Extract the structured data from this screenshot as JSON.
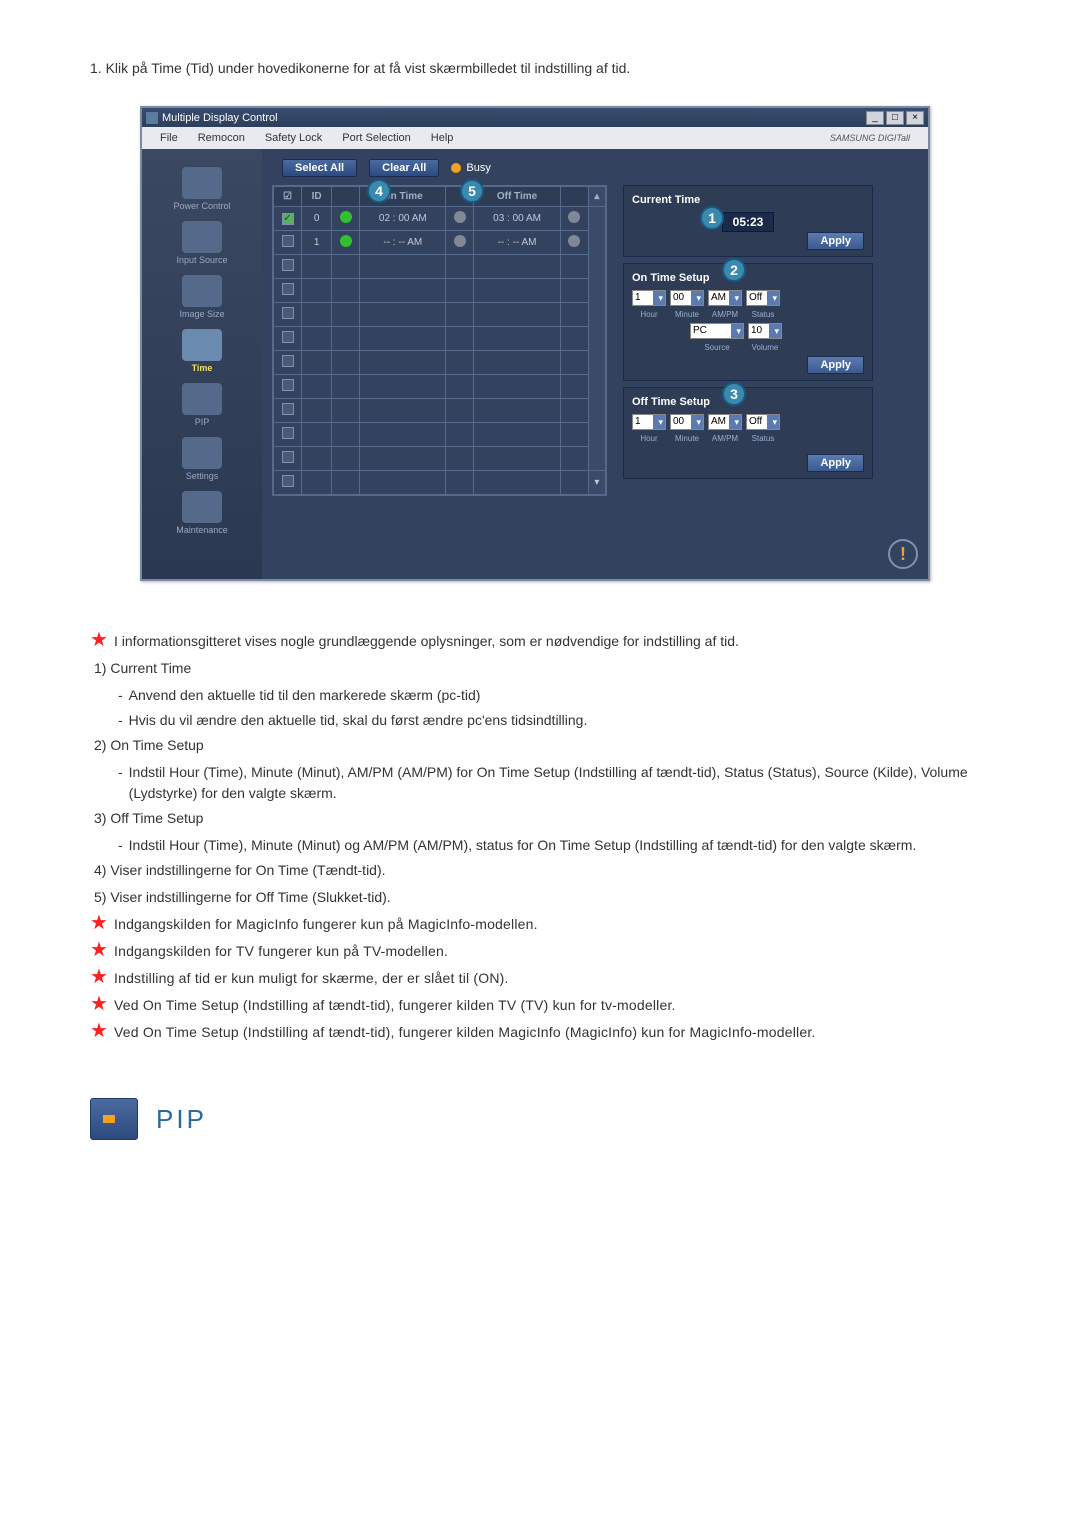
{
  "intro": "1.  Klik på Time (Tid) under hovedikonerne for at få vist skærmbilledet til indstilling af tid.",
  "window": {
    "title": "Multiple Display Control",
    "min": "_",
    "max": "□",
    "close": "×",
    "menu": [
      "File",
      "Remocon",
      "Safety Lock",
      "Port Selection",
      "Help"
    ],
    "brand": "SAMSUNG DIGITall"
  },
  "sidebar": [
    {
      "label": "Power Control",
      "active": false
    },
    {
      "label": "Input Source",
      "active": false
    },
    {
      "label": "Image Size",
      "active": false
    },
    {
      "label": "Time",
      "active": true
    },
    {
      "label": "PIP",
      "active": false
    },
    {
      "label": "Settings",
      "active": false
    },
    {
      "label": "Maintenance",
      "active": false
    }
  ],
  "topbuttons": {
    "select_all": "Select All",
    "clear_all": "Clear All",
    "busy": "Busy"
  },
  "table": {
    "headers": {
      "chk": "☑",
      "id": "ID",
      "st": "",
      "on": "On Time",
      "ot": "Off Time"
    },
    "rows": [
      {
        "chk": true,
        "id": "0",
        "lamp": "green",
        "on": "02 : 00 AM",
        "ot": "03 : 00 AM",
        "lamp2": "gray",
        "lamp3": "gray"
      },
      {
        "chk": false,
        "id": "1",
        "lamp": "green",
        "on": "-- : -- AM",
        "ot": "-- : -- AM",
        "lamp2": "gray",
        "lamp3": "gray"
      },
      {
        "chk": false,
        "id": "",
        "lamp": "",
        "on": "",
        "ot": "",
        "lamp2": "",
        "lamp3": ""
      },
      {
        "chk": false,
        "id": "",
        "lamp": "",
        "on": "",
        "ot": "",
        "lamp2": "",
        "lamp3": ""
      },
      {
        "chk": false,
        "id": "",
        "lamp": "",
        "on": "",
        "ot": "",
        "lamp2": "",
        "lamp3": ""
      },
      {
        "chk": false,
        "id": "",
        "lamp": "",
        "on": "",
        "ot": "",
        "lamp2": "",
        "lamp3": ""
      },
      {
        "chk": false,
        "id": "",
        "lamp": "",
        "on": "",
        "ot": "",
        "lamp2": "",
        "lamp3": ""
      },
      {
        "chk": false,
        "id": "",
        "lamp": "",
        "on": "",
        "ot": "",
        "lamp2": "",
        "lamp3": ""
      },
      {
        "chk": false,
        "id": "",
        "lamp": "",
        "on": "",
        "ot": "",
        "lamp2": "",
        "lamp3": ""
      },
      {
        "chk": false,
        "id": "",
        "lamp": "",
        "on": "",
        "ot": "",
        "lamp2": "",
        "lamp3": ""
      },
      {
        "chk": false,
        "id": "",
        "lamp": "",
        "on": "",
        "ot": "",
        "lamp2": "",
        "lamp3": ""
      },
      {
        "chk": false,
        "id": "",
        "lamp": "",
        "on": "",
        "ot": "",
        "lamp2": "",
        "lamp3": ""
      }
    ]
  },
  "panels": {
    "current": {
      "title": "Current Time",
      "value": "05:23",
      "apply": "Apply"
    },
    "on": {
      "title": "On Time Setup",
      "hour": "1",
      "min": "00",
      "ampm": "AM",
      "status": "Off",
      "source": "PC",
      "volume": "10",
      "lbl_hour": "Hour",
      "lbl_min": "Minute",
      "lbl_ampm": "AM/PM",
      "lbl_status": "Status",
      "lbl_source": "Source",
      "lbl_volume": "Volume",
      "apply": "Apply"
    },
    "off": {
      "title": "Off Time Setup",
      "hour": "1",
      "min": "00",
      "ampm": "AM",
      "status": "Off",
      "lbl_hour": "Hour",
      "lbl_min": "Minute",
      "lbl_ampm": "AM/PM",
      "lbl_status": "Status",
      "apply": "Apply"
    }
  },
  "callouts": {
    "c1": "1",
    "c2": "2",
    "c3": "3",
    "c4": "4",
    "c5": "5"
  },
  "notes": {
    "s1": "I informationsgitteret vises nogle grundlæggende oplysninger, som er nødvendige for indstilling af tid.",
    "n1": "1)  Current Time",
    "n1a": "Anvend den aktuelle tid til den markerede skærm (pc-tid)",
    "n1b": "Hvis du vil ændre den aktuelle tid, skal du først ændre pc'ens tidsindtilling.",
    "n2": "2)  On Time Setup",
    "n2a": "Indstil Hour (Time), Minute (Minut), AM/PM (AM/PM) for On Time Setup (Indstilling af tændt-tid), Status (Status), Source (Kilde), Volume (Lydstyrke) for den valgte skærm.",
    "n3": "3)  Off Time Setup",
    "n3a": "Indstil Hour (Time), Minute (Minut) og AM/PM (AM/PM), status for On Time Setup (Indstilling af tændt-tid) for den valgte skærm.",
    "n4": "4)  Viser indstillingerne for On Time (Tændt-tid).",
    "n5": "5)  Viser indstillingerne for Off Time (Slukket-tid).",
    "s2": "Indgangskilden for MagicInfo fungerer kun på MagicInfo-modellen.",
    "s3": "Indgangskilden for TV fungerer kun på TV-modellen.",
    "s4": "Indstilling af tid er kun muligt for skærme, der er slået til (ON).",
    "s5": "Ved On Time Setup (Indstilling af tændt-tid), fungerer kilden TV (TV) kun for tv-modeller.",
    "s6": "Ved On Time Setup (Indstilling af tændt-tid), fungerer kilden MagicInfo (MagicInfo) kun for MagicInfo-modeller."
  },
  "pip_label": "PIP"
}
